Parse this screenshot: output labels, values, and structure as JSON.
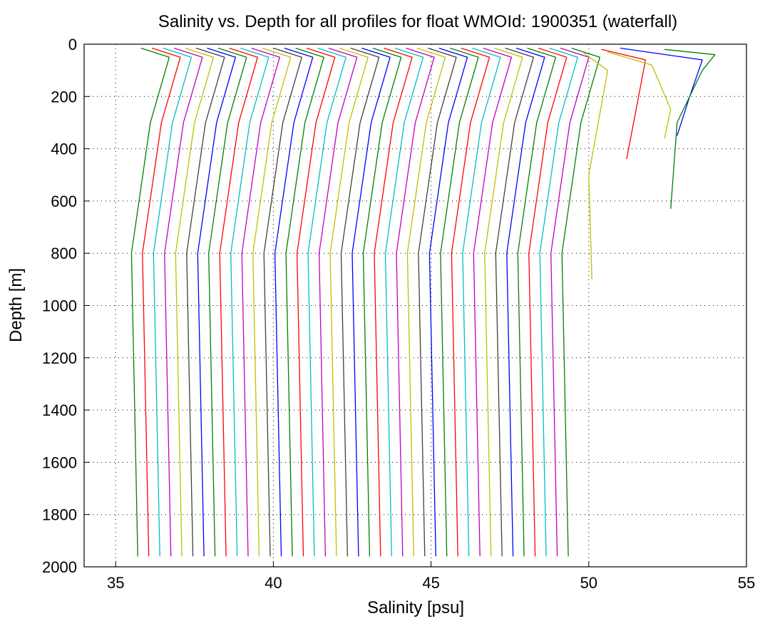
{
  "chart_data": {
    "type": "line",
    "title": "Salinity vs. Depth for all profiles for float WMOId: 1900351 (waterfall)",
    "x_label": "Salinity [psu]",
    "y_label": "Depth [m]",
    "xlim": [
      34,
      55
    ],
    "xticks": [
      35,
      40,
      45,
      50,
      55
    ],
    "ylim": [
      0,
      2000
    ],
    "yticks": [
      0,
      200,
      400,
      600,
      800,
      1000,
      1200,
      1400,
      1600,
      1800,
      2000
    ],
    "y_reversed": true,
    "grid": true,
    "depth": [
      15,
      50,
      300,
      800,
      1960
    ],
    "series": [
      {
        "color": "#008000",
        "values": [
          35.8,
          36.7,
          36.1,
          35.5,
          35.7
        ]
      },
      {
        "color": "#ff0000",
        "values": [
          36.15,
          37.05,
          36.45,
          35.85,
          36.05
        ]
      },
      {
        "color": "#00bfbf",
        "values": [
          36.5,
          37.4,
          36.8,
          36.2,
          36.4
        ]
      },
      {
        "color": "#bf00bf",
        "values": [
          36.85,
          37.75,
          37.15,
          36.55,
          36.75
        ]
      },
      {
        "color": "#bfbf00",
        "values": [
          37.2,
          38.1,
          37.5,
          36.9,
          37.1
        ]
      },
      {
        "color": "#404040",
        "values": [
          37.55,
          38.45,
          37.85,
          37.25,
          37.45
        ]
      },
      {
        "color": "#0000ff",
        "values": [
          37.9,
          38.8,
          38.2,
          37.6,
          37.8
        ]
      },
      {
        "color": "#008000",
        "values": [
          38.25,
          39.15,
          38.55,
          37.95,
          38.15
        ]
      },
      {
        "color": "#ff0000",
        "values": [
          38.6,
          39.5,
          38.9,
          38.3,
          38.5
        ]
      },
      {
        "color": "#00bfbf",
        "values": [
          38.95,
          39.85,
          39.25,
          38.65,
          38.85
        ]
      },
      {
        "color": "#bf00bf",
        "values": [
          39.3,
          40.2,
          39.6,
          39.0,
          39.2
        ]
      },
      {
        "color": "#bfbf00",
        "values": [
          39.65,
          40.55,
          39.95,
          39.35,
          39.55
        ]
      },
      {
        "color": "#404040",
        "values": [
          40,
          40.9,
          40.3,
          39.7,
          39.9
        ]
      },
      {
        "color": "#0000ff",
        "values": [
          40.35,
          41.25,
          40.65,
          40.05,
          40.25
        ]
      },
      {
        "color": "#008000",
        "values": [
          40.7,
          41.6,
          41,
          40.4,
          40.6
        ]
      },
      {
        "color": "#ff0000",
        "values": [
          41.05,
          41.95,
          41.35,
          40.75,
          40.95
        ]
      },
      {
        "color": "#00bfbf",
        "values": [
          41.4,
          42.3,
          41.7,
          41.1,
          41.3
        ]
      },
      {
        "color": "#bf00bf",
        "values": [
          41.75,
          42.65,
          42.05,
          41.45,
          41.65
        ]
      },
      {
        "color": "#bfbf00",
        "values": [
          42.1,
          43,
          42.4,
          41.8,
          42
        ]
      },
      {
        "color": "#404040",
        "values": [
          42.45,
          43.35,
          42.75,
          42.15,
          42.35
        ]
      },
      {
        "color": "#0000ff",
        "values": [
          42.8,
          43.7,
          43.1,
          42.5,
          42.7
        ]
      },
      {
        "color": "#008000",
        "values": [
          43.15,
          44.05,
          43.45,
          42.85,
          43.05
        ]
      },
      {
        "color": "#ff0000",
        "values": [
          43.5,
          44.4,
          43.8,
          43.2,
          43.4
        ]
      },
      {
        "color": "#00bfbf",
        "values": [
          43.85,
          44.75,
          44.15,
          43.55,
          43.75
        ]
      },
      {
        "color": "#bf00bf",
        "values": [
          44.2,
          45.1,
          44.5,
          43.9,
          44.1
        ]
      },
      {
        "color": "#bfbf00",
        "values": [
          44.55,
          45.45,
          44.85,
          44.25,
          44.45
        ]
      },
      {
        "color": "#404040",
        "values": [
          44.9,
          45.8,
          45.2,
          44.6,
          44.8
        ]
      },
      {
        "color": "#0000ff",
        "values": [
          45.25,
          46.15,
          45.55,
          44.95,
          45.15
        ]
      },
      {
        "color": "#008000",
        "values": [
          45.6,
          46.5,
          45.9,
          45.3,
          45.5
        ]
      },
      {
        "color": "#ff0000",
        "values": [
          45.95,
          46.85,
          46.25,
          45.65,
          45.85
        ]
      },
      {
        "color": "#00bfbf",
        "values": [
          46.3,
          47.2,
          46.6,
          46,
          46.2
        ]
      },
      {
        "color": "#bf00bf",
        "values": [
          46.65,
          47.55,
          46.95,
          46.35,
          46.55
        ]
      },
      {
        "color": "#bfbf00",
        "values": [
          47,
          47.9,
          47.3,
          46.7,
          46.9
        ]
      },
      {
        "color": "#404040",
        "values": [
          47.35,
          48.25,
          47.65,
          47.05,
          47.25
        ]
      },
      {
        "color": "#0000ff",
        "values": [
          47.7,
          48.6,
          48,
          47.4,
          47.6
        ]
      },
      {
        "color": "#008000",
        "values": [
          48.05,
          48.95,
          48.35,
          47.75,
          47.95
        ]
      },
      {
        "color": "#ff0000",
        "values": [
          48.4,
          49.3,
          48.7,
          48.1,
          48.3
        ]
      },
      {
        "color": "#00bfbf",
        "values": [
          48.75,
          49.65,
          49.05,
          48.45,
          48.65
        ]
      },
      {
        "color": "#bf00bf",
        "values": [
          49.1,
          50,
          49.4,
          48.8,
          49
        ]
      },
      {
        "color": "#008000",
        "values": [
          49.45,
          50.35,
          49.75,
          49.15,
          49.35
        ]
      },
      {
        "color": "#bfbf00",
        "depth": [
          30,
          100,
          500,
          900
        ],
        "values": [
          49.8,
          50.6,
          50,
          50.1
        ]
      },
      {
        "color": "#ff0000",
        "depth": [
          20,
          60,
          250,
          440
        ],
        "values": [
          50.4,
          51.8,
          51.5,
          51.2
        ]
      },
      {
        "color": "#bfbf00",
        "depth": [
          30,
          80,
          250,
          360
        ],
        "values": [
          50.6,
          52,
          52.6,
          52.4
        ]
      },
      {
        "color": "#0000ff",
        "depth": [
          15,
          60,
          200,
          350
        ],
        "values": [
          51,
          53.6,
          53.2,
          52.8
        ]
      },
      {
        "color": "#008000",
        "depth": [
          20,
          40,
          100,
          300,
          630
        ],
        "values": [
          52.4,
          54,
          53.6,
          52.8,
          52.6
        ]
      }
    ]
  }
}
